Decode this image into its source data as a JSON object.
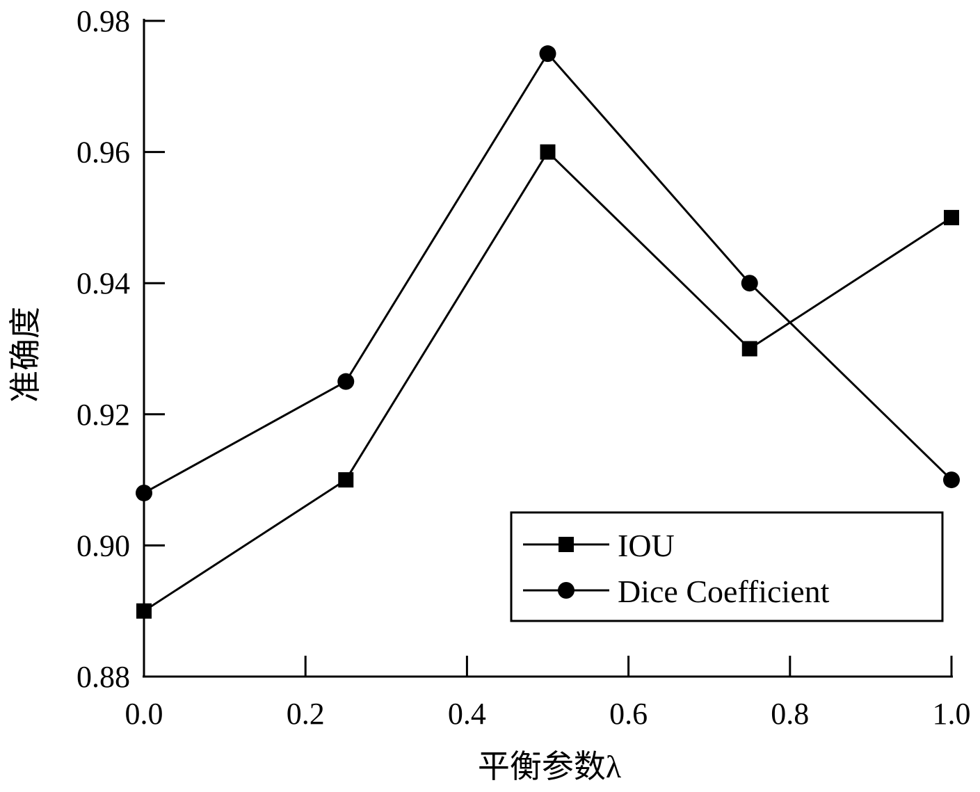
{
  "chart_data": {
    "type": "line",
    "xlabel": "平衡参数λ",
    "ylabel": "准确度",
    "xlim": [
      0.0,
      1.0
    ],
    "ylim": [
      0.88,
      0.98
    ],
    "xticks": [
      0.0,
      0.2,
      0.4,
      0.6,
      0.8,
      1.0
    ],
    "xtick_labels": [
      "0.0",
      "0.2",
      "0.4",
      "0.6",
      "0.8",
      "1.0"
    ],
    "yticks": [
      0.88,
      0.9,
      0.92,
      0.94,
      0.96,
      0.98
    ],
    "ytick_labels": [
      "0.88",
      "0.90",
      "0.92",
      "0.94",
      "0.96",
      "0.98"
    ],
    "grid": false,
    "legend_position": "bottom-right",
    "x": [
      0.0,
      0.25,
      0.5,
      0.75,
      1.0
    ],
    "series": [
      {
        "name": "IOU",
        "marker": "square",
        "color": "#000000",
        "values": [
          0.89,
          0.91,
          0.96,
          0.93,
          0.95
        ]
      },
      {
        "name": "Dice Coefficient",
        "marker": "circle",
        "color": "#000000",
        "values": [
          0.908,
          0.925,
          0.975,
          0.94,
          0.91
        ]
      }
    ]
  }
}
